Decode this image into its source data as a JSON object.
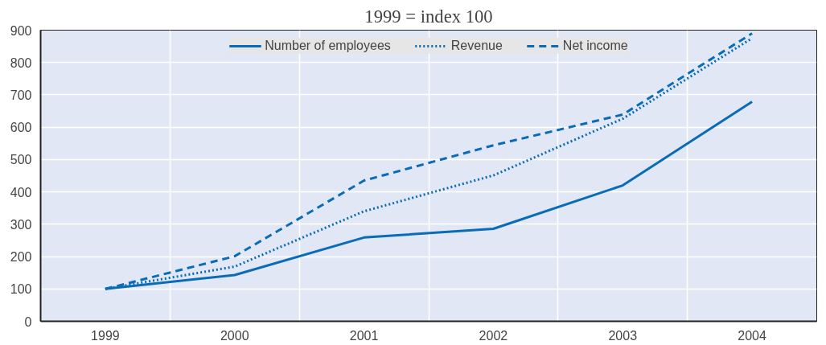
{
  "chart_data": {
    "type": "line",
    "title": "1999 = index 100",
    "categories": [
      "1999",
      "2000",
      "2001",
      "2002",
      "2003",
      "2004"
    ],
    "series": [
      {
        "name": "Number of employees",
        "color": "#0a6cb6",
        "line_style": "solid",
        "values": [
          100,
          143,
          259,
          286,
          420,
          679
        ]
      },
      {
        "name": "Revenue",
        "color": "#0a6cb6",
        "line_style": "dotted",
        "values": [
          100,
          169,
          340,
          451,
          626,
          875
        ]
      },
      {
        "name": "Net income",
        "color": "#0a6cb6",
        "line_style": "dashed",
        "values": [
          100,
          201,
          435,
          544,
          639,
          890
        ]
      }
    ],
    "ylim": [
      0,
      900
    ],
    "yticks": [
      0,
      100,
      200,
      300,
      400,
      500,
      600,
      700,
      800,
      900
    ],
    "grid": true,
    "legend": "top",
    "marker": "none"
  }
}
